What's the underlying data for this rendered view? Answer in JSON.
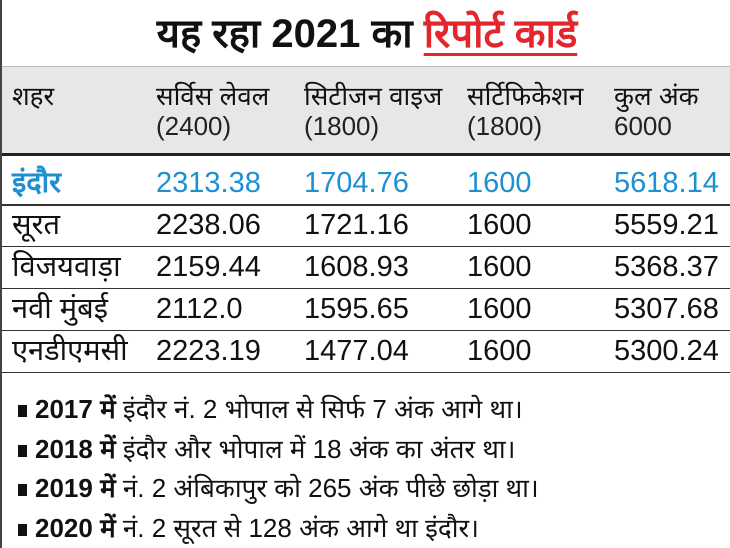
{
  "title": {
    "prefix": "यह रहा 2021 का",
    "highlight": "रिपोर्ट कार्ड",
    "highlight_color": "#e2262b"
  },
  "table": {
    "headers": [
      {
        "label": "शहर",
        "sub": ""
      },
      {
        "label": "सर्विस लेवल",
        "sub": "(2400)"
      },
      {
        "label": "सिटीजन वाइज",
        "sub": "(1800)"
      },
      {
        "label": "सर्टिफिकेशन",
        "sub": "(1800)"
      },
      {
        "label": "कुल अंक",
        "sub": "6000"
      }
    ],
    "highlight_color": "#1e8fcf",
    "rows": [
      [
        "इंदौर",
        "2313.38",
        "1704.76",
        "1600",
        "5618.14"
      ],
      [
        "सूरत",
        "2238.06",
        "1721.16",
        "1600",
        "5559.21"
      ],
      [
        "विजयवाड़ा",
        "2159.44",
        "1608.93",
        "1600",
        "5368.37"
      ],
      [
        "नवी मुंबई",
        "2112.0",
        "1595.65",
        "1600",
        "5307.68"
      ],
      [
        "एनडीएमसी",
        "2223.19",
        "1477.04",
        "1600",
        "5300.24"
      ]
    ]
  },
  "notes": [
    {
      "lead": "2017 में",
      "text": "इंदौर नं. 2 भोपाल से सिर्फ 7 अंक आगे था।"
    },
    {
      "lead": "2018 में",
      "text": "इंदौर और भोपाल में 18 अंक का अंतर था।"
    },
    {
      "lead": "2019 में",
      "text": "नं. 2 अंबिकापुर को 265 अंक पीछे छोड़ा था।"
    },
    {
      "lead": "2020 में",
      "text": "नं. 2 सूरत से 128 अंक आगे था इंदौर।"
    }
  ]
}
